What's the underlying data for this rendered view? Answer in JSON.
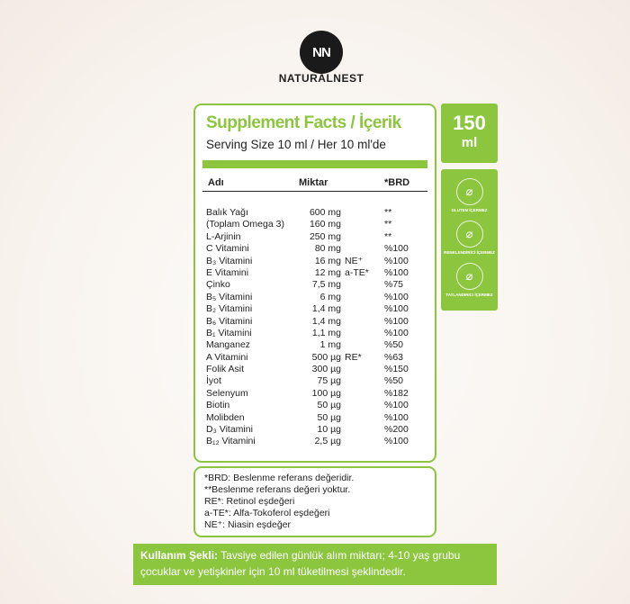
{
  "brand": {
    "logo_text": "NN",
    "name": "NATURALNEST"
  },
  "panel": {
    "title": "Supplement Facts / İçerik",
    "serving": "Serving Size 10 ml / Her 10 ml'de",
    "headers": {
      "name": "Adı",
      "amount": "Miktar",
      "brd": "*BRD"
    },
    "rows": [
      {
        "name": "Balık Yağı",
        "amount": "600 mg",
        "note": "",
        "brd": "**"
      },
      {
        "name": "(Toplam Omega 3)",
        "amount": "160 mg",
        "note": "",
        "brd": "**"
      },
      {
        "name": "L-Arjinin",
        "amount": "250 mg",
        "note": "",
        "brd": "**"
      },
      {
        "name": "C Vitamini",
        "amount": "80 mg",
        "note": "",
        "brd": "%100"
      },
      {
        "name": "B₃ Vitamini",
        "amount": "16 mg",
        "note": "NE⁺",
        "brd": "%100"
      },
      {
        "name": "E Vitamini",
        "amount": "12 mg",
        "note": "a-TE*",
        "brd": "%100"
      },
      {
        "name": "Çinko",
        "amount": "7,5 mg",
        "note": "",
        "brd": "%75"
      },
      {
        "name": "B₅ Vitamini",
        "amount": "6 mg",
        "note": "",
        "brd": "%100"
      },
      {
        "name": "B₂ Vitamini",
        "amount": "1,4 mg",
        "note": "",
        "brd": "%100"
      },
      {
        "name": "B₆ Vitamini",
        "amount": "1,4 mg",
        "note": "",
        "brd": "%100"
      },
      {
        "name": "B₁ Vitamini",
        "amount": "1,1 mg",
        "note": "",
        "brd": "%100"
      },
      {
        "name": "Manganez",
        "amount": "1 mg",
        "note": "",
        "brd": "%50"
      },
      {
        "name": "A Vitamini",
        "amount": "500 µg",
        "note": "RE*",
        "brd": "%63"
      },
      {
        "name": "Folik Asit",
        "amount": "300 µg",
        "note": "",
        "brd": "%150"
      },
      {
        "name": "İyot",
        "amount": "75 µg",
        "note": "",
        "brd": "%50"
      },
      {
        "name": "Selenyum",
        "amount": "100 µg",
        "note": "",
        "brd": "%182"
      },
      {
        "name": "Biotin",
        "amount": "50 µg",
        "note": "",
        "brd": "%100"
      },
      {
        "name": "Molibden",
        "amount": "50 µg",
        "note": "",
        "brd": "%100"
      },
      {
        "name": "D₃ Vitamini",
        "amount": "10 µg",
        "note": "",
        "brd": "%200"
      },
      {
        "name": "B₁₂ Vitamini",
        "amount": "2,5 µg",
        "note": "",
        "brd": "%100"
      }
    ]
  },
  "notes": [
    "*BRD: Beslenme referans değeridir.",
    "**Beslenme referans değeri yoktur.",
    "RE*: Retinol eşdeğeri",
    "a-TE*: Alfa-Tokoferol eşdeğeri",
    "NE⁺: Niasin eşdeğer"
  ],
  "usage": {
    "label": "Kullanım Şekli:",
    "text": " Tavsiye edilen günlük alım miktarı;  4-10 yaş grubu çocuklar ve yetişkinler için 10 ml tüketilmesi şeklindedir."
  },
  "volume": {
    "number": "150",
    "unit": "ml"
  },
  "badges": [
    {
      "icon": "wheat-crossed-icon",
      "glyph": "⌀",
      "label": "GLUTEN İÇERMEZ"
    },
    {
      "icon": "dropper-crossed-icon",
      "glyph": "⌀",
      "label": "RENKLENDİRİCİ İÇERMEZ"
    },
    {
      "icon": "sweetener-crossed-icon",
      "glyph": "⌀",
      "label": "TATLANDIRICI İÇERMEZ"
    }
  ],
  "colors": {
    "accent": "#8cc63f"
  }
}
